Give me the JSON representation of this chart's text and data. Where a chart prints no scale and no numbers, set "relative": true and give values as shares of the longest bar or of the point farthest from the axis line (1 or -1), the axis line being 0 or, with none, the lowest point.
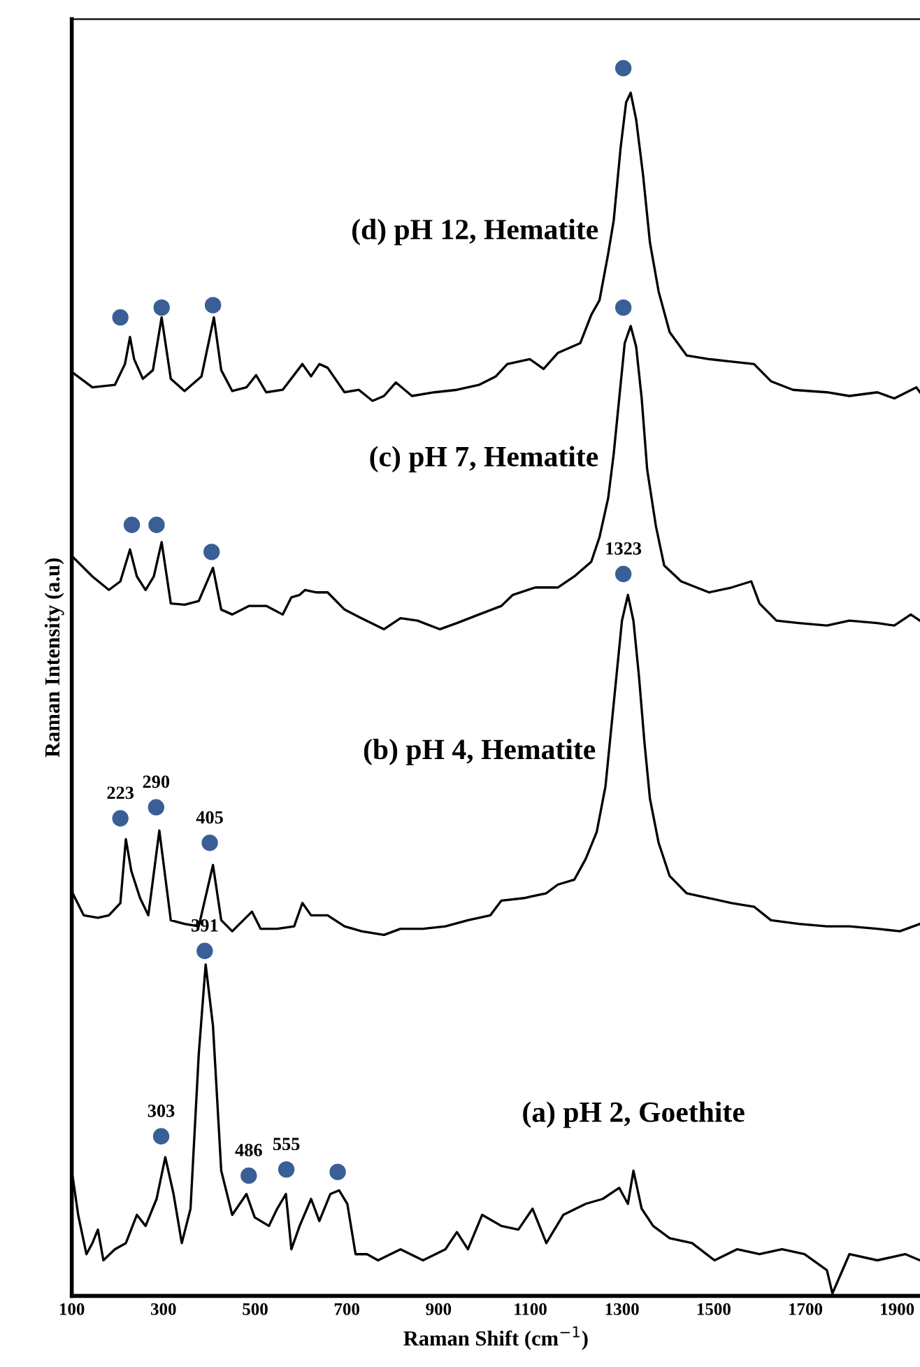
{
  "chart_data": {
    "type": "line",
    "relative": true,
    "xlabel": "Raman Shift (cm$^{−1}$)",
    "ylabel": "Raman Intensity (a.u)",
    "xlim": [
      100,
      1950
    ],
    "xticks": [
      100,
      300,
      500,
      700,
      900,
      1100,
      1300,
      1500,
      1700,
      1900
    ],
    "tick_labels": "x",
    "marker": "none",
    "line_style": "solid",
    "series": [
      {
        "name": "(d) pH 12, Hematite",
        "color": "#000000",
        "x": [
          102,
          145,
          194,
          216,
          227,
          236,
          255,
          277,
          296,
          316,
          346,
          383,
          410,
          426,
          450,
          481,
          502,
          524,
          560,
          603,
          622,
          640,
          658,
          695,
          726,
          756,
          781,
          807,
          842,
          891,
          940,
          988,
          1025,
          1050,
          1099,
          1129,
          1160,
          1209,
          1233,
          1251,
          1270,
          1282,
          1297,
          1309,
          1319,
          1331,
          1346,
          1361,
          1380,
          1404,
          1441,
          1490,
          1539,
          1588,
          1625,
          1673,
          1747,
          1796,
          1857,
          1894,
          1942,
          1950
        ],
        "values": [
          0.752,
          0.74,
          0.742,
          0.759,
          0.781,
          0.763,
          0.747,
          0.754,
          0.797,
          0.747,
          0.737,
          0.749,
          0.797,
          0.754,
          0.737,
          0.74,
          0.75,
          0.736,
          0.738,
          0.759,
          0.749,
          0.759,
          0.756,
          0.736,
          0.738,
          0.729,
          0.733,
          0.744,
          0.733,
          0.736,
          0.738,
          0.742,
          0.749,
          0.759,
          0.763,
          0.755,
          0.768,
          0.776,
          0.799,
          0.811,
          0.849,
          0.876,
          0.935,
          0.972,
          0.98,
          0.958,
          0.913,
          0.858,
          0.818,
          0.785,
          0.766,
          0.763,
          0.761,
          0.759,
          0.745,
          0.738,
          0.736,
          0.733,
          0.736,
          0.731,
          0.74,
          0.736
        ]
      },
      {
        "name": "(c) pH 7, Hematite",
        "color": "#000000",
        "x": [
          102,
          145,
          181,
          206,
          227,
          242,
          261,
          279,
          296,
          316,
          346,
          377,
          408,
          426,
          450,
          487,
          524,
          560,
          579,
          597,
          609,
          634,
          658,
          695,
          732,
          781,
          817,
          854,
          903,
          940,
          988,
          1037,
          1062,
          1111,
          1160,
          1196,
          1233,
          1251,
          1270,
          1282,
          1294,
          1306,
          1319,
          1331,
          1343,
          1355,
          1374,
          1392,
          1429,
          1490,
          1539,
          1582,
          1600,
          1637,
          1686,
          1747,
          1796,
          1857,
          1894,
          1930,
          1950
        ],
        "values": [
          0.602,
          0.586,
          0.575,
          0.582,
          0.608,
          0.586,
          0.575,
          0.586,
          0.614,
          0.564,
          0.563,
          0.566,
          0.593,
          0.559,
          0.555,
          0.562,
          0.562,
          0.555,
          0.569,
          0.571,
          0.575,
          0.573,
          0.573,
          0.559,
          0.552,
          0.543,
          0.552,
          0.55,
          0.543,
          0.548,
          0.555,
          0.562,
          0.571,
          0.577,
          0.577,
          0.586,
          0.598,
          0.618,
          0.65,
          0.686,
          0.731,
          0.776,
          0.79,
          0.773,
          0.731,
          0.673,
          0.627,
          0.595,
          0.582,
          0.573,
          0.577,
          0.582,
          0.564,
          0.55,
          0.548,
          0.546,
          0.55,
          0.548,
          0.546,
          0.555,
          0.55
        ]
      },
      {
        "name": "(b) pH 4, Hematite",
        "color": "#000000",
        "x": [
          102,
          126,
          157,
          181,
          206,
          218,
          230,
          249,
          267,
          291,
          316,
          346,
          377,
          408,
          426,
          450,
          493,
          512,
          548,
          585,
          603,
          622,
          658,
          695,
          732,
          781,
          817,
          866,
          915,
          964,
          1013,
          1037,
          1086,
          1135,
          1160,
          1196,
          1221,
          1245,
          1264,
          1276,
          1288,
          1300,
          1313,
          1325,
          1337,
          1349,
          1361,
          1380,
          1404,
          1441,
          1490,
          1539,
          1588,
          1625,
          1686,
          1747,
          1796,
          1857,
          1906,
          1950
        ],
        "values": [
          0.328,
          0.31,
          0.308,
          0.31,
          0.32,
          0.372,
          0.346,
          0.324,
          0.31,
          0.379,
          0.306,
          0.303,
          0.301,
          0.351,
          0.306,
          0.297,
          0.313,
          0.299,
          0.299,
          0.301,
          0.32,
          0.31,
          0.31,
          0.301,
          0.297,
          0.294,
          0.299,
          0.299,
          0.301,
          0.306,
          0.31,
          0.322,
          0.324,
          0.328,
          0.335,
          0.339,
          0.356,
          0.378,
          0.415,
          0.46,
          0.505,
          0.55,
          0.571,
          0.55,
          0.505,
          0.451,
          0.405,
          0.369,
          0.342,
          0.328,
          0.324,
          0.32,
          0.317,
          0.306,
          0.303,
          0.301,
          0.301,
          0.299,
          0.297,
          0.303
        ]
      },
      {
        "name": "(a) pH 2, Goethite",
        "color": "#000000",
        "x": [
          102,
          114,
          132,
          145,
          157,
          169,
          194,
          218,
          242,
          261,
          285,
          304,
          322,
          340,
          359,
          377,
          392,
          408,
          426,
          450,
          481,
          499,
          530,
          548,
          567,
          579,
          597,
          622,
          640,
          664,
          683,
          701,
          719,
          744,
          768,
          817,
          866,
          915,
          940,
          964,
          995,
          1037,
          1074,
          1105,
          1135,
          1172,
          1221,
          1258,
          1294,
          1313,
          1325,
          1343,
          1368,
          1404,
          1453,
          1502,
          1551,
          1600,
          1649,
          1698,
          1747,
          1759,
          1796,
          1857,
          1918,
          1950
        ],
        "values": [
          0.097,
          0.066,
          0.034,
          0.043,
          0.054,
          0.029,
          0.038,
          0.043,
          0.066,
          0.057,
          0.079,
          0.113,
          0.083,
          0.043,
          0.071,
          0.197,
          0.27,
          0.22,
          0.102,
          0.066,
          0.083,
          0.064,
          0.057,
          0.071,
          0.083,
          0.038,
          0.057,
          0.079,
          0.061,
          0.083,
          0.086,
          0.075,
          0.034,
          0.034,
          0.029,
          0.038,
          0.029,
          0.038,
          0.052,
          0.038,
          0.066,
          0.057,
          0.054,
          0.071,
          0.043,
          0.066,
          0.075,
          0.079,
          0.088,
          0.075,
          0.102,
          0.071,
          0.057,
          0.047,
          0.043,
          0.029,
          0.038,
          0.034,
          0.038,
          0.034,
          0.021,
          0.002,
          0.034,
          0.029,
          0.034,
          0.029
        ]
      },
      {
        "type": "scatter",
        "color": "#3a5f96",
        "marker": "circle",
        "x": [
          206,
          296,
          408,
          1303,
          1303,
          231,
          285,
          405,
          1303,
          206,
          284,
          401,
          390,
          295,
          486,
          568,
          680
        ],
        "values": [
          0.797,
          0.805,
          0.807,
          1,
          0.805,
          0.628,
          0.628,
          0.606,
          0.588,
          0.389,
          0.398,
          0.369,
          0.281,
          0.13,
          0.098,
          0.103,
          0.101
        ]
      }
    ],
    "annotations": [
      {
        "text": "1323",
        "x": 1303,
        "y": 0.588
      },
      {
        "text": "223",
        "x": 206,
        "y": 0.389
      },
      {
        "text": "290",
        "x": 284,
        "y": 0.398
      },
      {
        "text": "405",
        "x": 401,
        "y": 0.369
      },
      {
        "text": "391",
        "x": 390,
        "y": 0.281
      },
      {
        "text": "303",
        "x": 295,
        "y": 0.13
      },
      {
        "text": "486",
        "x": 486,
        "y": 0.098
      },
      {
        "text": "555",
        "x": 568,
        "y": 0.103
      }
    ]
  }
}
